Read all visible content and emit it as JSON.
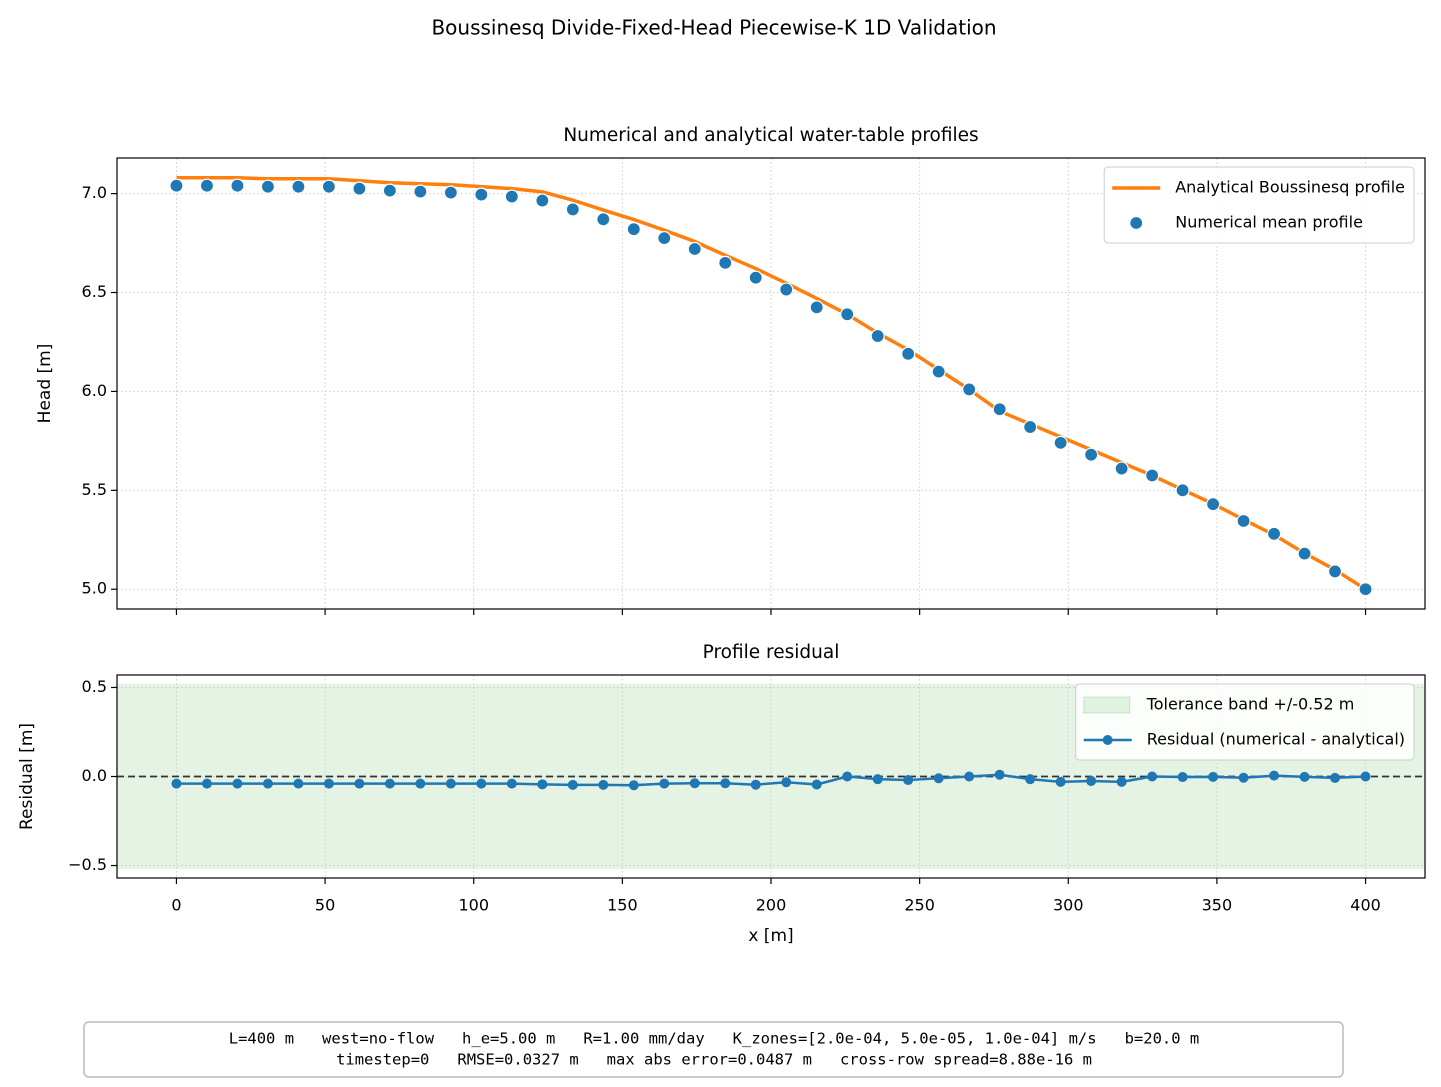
{
  "title": "Boussinesq Divide-Fixed-Head Piecewise-K 1D Validation",
  "chart_data": [
    {
      "type": "line",
      "title": "Numerical and analytical water-table profiles",
      "ylabel": "Head [m]",
      "x": [
        0,
        10.26,
        20.51,
        30.77,
        41.03,
        51.28,
        61.54,
        71.79,
        82.05,
        92.31,
        102.56,
        112.82,
        123.08,
        133.33,
        143.59,
        153.85,
        164.1,
        174.36,
        184.62,
        194.87,
        205.13,
        215.38,
        225.64,
        235.9,
        246.15,
        256.41,
        266.67,
        276.92,
        287.18,
        297.44,
        307.69,
        317.95,
        328.21,
        338.46,
        348.72,
        358.97,
        369.23,
        379.49,
        389.74,
        400
      ],
      "series": [
        {
          "name": "Analytical Boussinesq profile",
          "color": "#ff7f0e",
          "style": "line",
          "values": [
            7.08,
            7.08,
            7.08,
            7.075,
            7.075,
            7.075,
            7.065,
            7.055,
            7.05,
            7.045,
            7.035,
            7.025,
            7.009,
            6.967,
            6.917,
            6.869,
            6.815,
            6.758,
            6.688,
            6.621,
            6.547,
            6.47,
            6.39,
            6.295,
            6.21,
            6.11,
            6.01,
            5.9,
            5.835,
            5.77,
            5.705,
            5.64,
            5.575,
            5.503,
            5.432,
            5.352,
            5.275,
            5.182,
            5.098,
            5.0
          ]
        },
        {
          "name": "Numerical mean profile",
          "color": "#1f77b4",
          "style": "markers",
          "values": [
            7.04,
            7.04,
            7.04,
            7.035,
            7.035,
            7.035,
            7.025,
            7.015,
            7.01,
            7.005,
            6.995,
            6.985,
            6.965,
            6.92,
            6.87,
            6.82,
            6.775,
            6.72,
            6.65,
            6.575,
            6.515,
            6.425,
            6.39,
            6.28,
            6.19,
            6.1,
            6.01,
            5.91,
            5.82,
            5.74,
            5.68,
            5.61,
            5.575,
            5.5,
            5.43,
            5.345,
            5.28,
            5.18,
            5.09,
            5.0
          ]
        }
      ],
      "xlim": [
        -20,
        420
      ],
      "xticks": [
        0,
        50,
        100,
        150,
        200,
        250,
        300,
        350,
        400
      ],
      "ylim": [
        4.9,
        7.18
      ],
      "yticks": [
        {
          "value": 5.0,
          "label": "5.0"
        },
        5.5,
        {
          "value": 6.0,
          "label": "6.0"
        },
        6.5,
        {
          "value": 7.0,
          "label": "7.0"
        }
      ],
      "grid": true,
      "legend": "upper right"
    },
    {
      "type": "line",
      "title": "Profile residual",
      "ylabel": "Residual [m]",
      "xlabel": "x [m]",
      "x": [
        0,
        10.26,
        20.51,
        30.77,
        41.03,
        51.28,
        61.54,
        71.79,
        82.05,
        92.31,
        102.56,
        112.82,
        123.08,
        133.33,
        143.59,
        153.85,
        164.1,
        174.36,
        184.62,
        194.87,
        205.13,
        215.38,
        225.64,
        235.9,
        246.15,
        256.41,
        266.67,
        276.92,
        287.18,
        297.44,
        307.69,
        317.95,
        328.21,
        338.46,
        348.72,
        358.97,
        369.23,
        379.49,
        389.74,
        400
      ],
      "band": {
        "name": "Tolerance band +/-0.52 m",
        "color": "#2ca02c",
        "tolerance": 0.52
      },
      "reference_line": 0,
      "series": [
        {
          "name": "Residual (numerical - analytical)",
          "color": "#1f77b4",
          "style": "line-markers",
          "values": [
            -0.04,
            -0.04,
            -0.04,
            -0.04,
            -0.04,
            -0.04,
            -0.04,
            -0.04,
            -0.04,
            -0.04,
            -0.04,
            -0.04,
            -0.044,
            -0.047,
            -0.047,
            -0.049,
            -0.04,
            -0.038,
            -0.038,
            -0.046,
            -0.032,
            -0.045,
            0.0,
            -0.015,
            -0.02,
            -0.01,
            0.0,
            0.01,
            -0.015,
            -0.03,
            -0.025,
            -0.03,
            0.0,
            -0.003,
            -0.002,
            -0.007,
            0.005,
            -0.002,
            -0.008,
            0.0
          ]
        }
      ],
      "xlim": [
        -20,
        420
      ],
      "xticks": [
        0,
        50,
        100,
        150,
        200,
        250,
        300,
        350,
        400
      ],
      "ylim": [
        -0.57,
        0.57
      ],
      "yticks": [
        {
          "value": -0.5,
          "label": "−0.5"
        },
        {
          "value": 0.0,
          "label": "0.0"
        },
        0.5
      ],
      "grid": true,
      "legend": "upper right"
    }
  ],
  "footer": [
    "L=400 m   west=no-flow   h_e=5.00 m   R=1.00 mm/day   K_zones=[2.0e-04, 5.0e-05, 1.0e-04] m/s   b=20.0 m",
    "timestep=0   RMSE=0.0327 m   max abs error=0.0487 m   cross-row spread=8.88e-16 m"
  ]
}
